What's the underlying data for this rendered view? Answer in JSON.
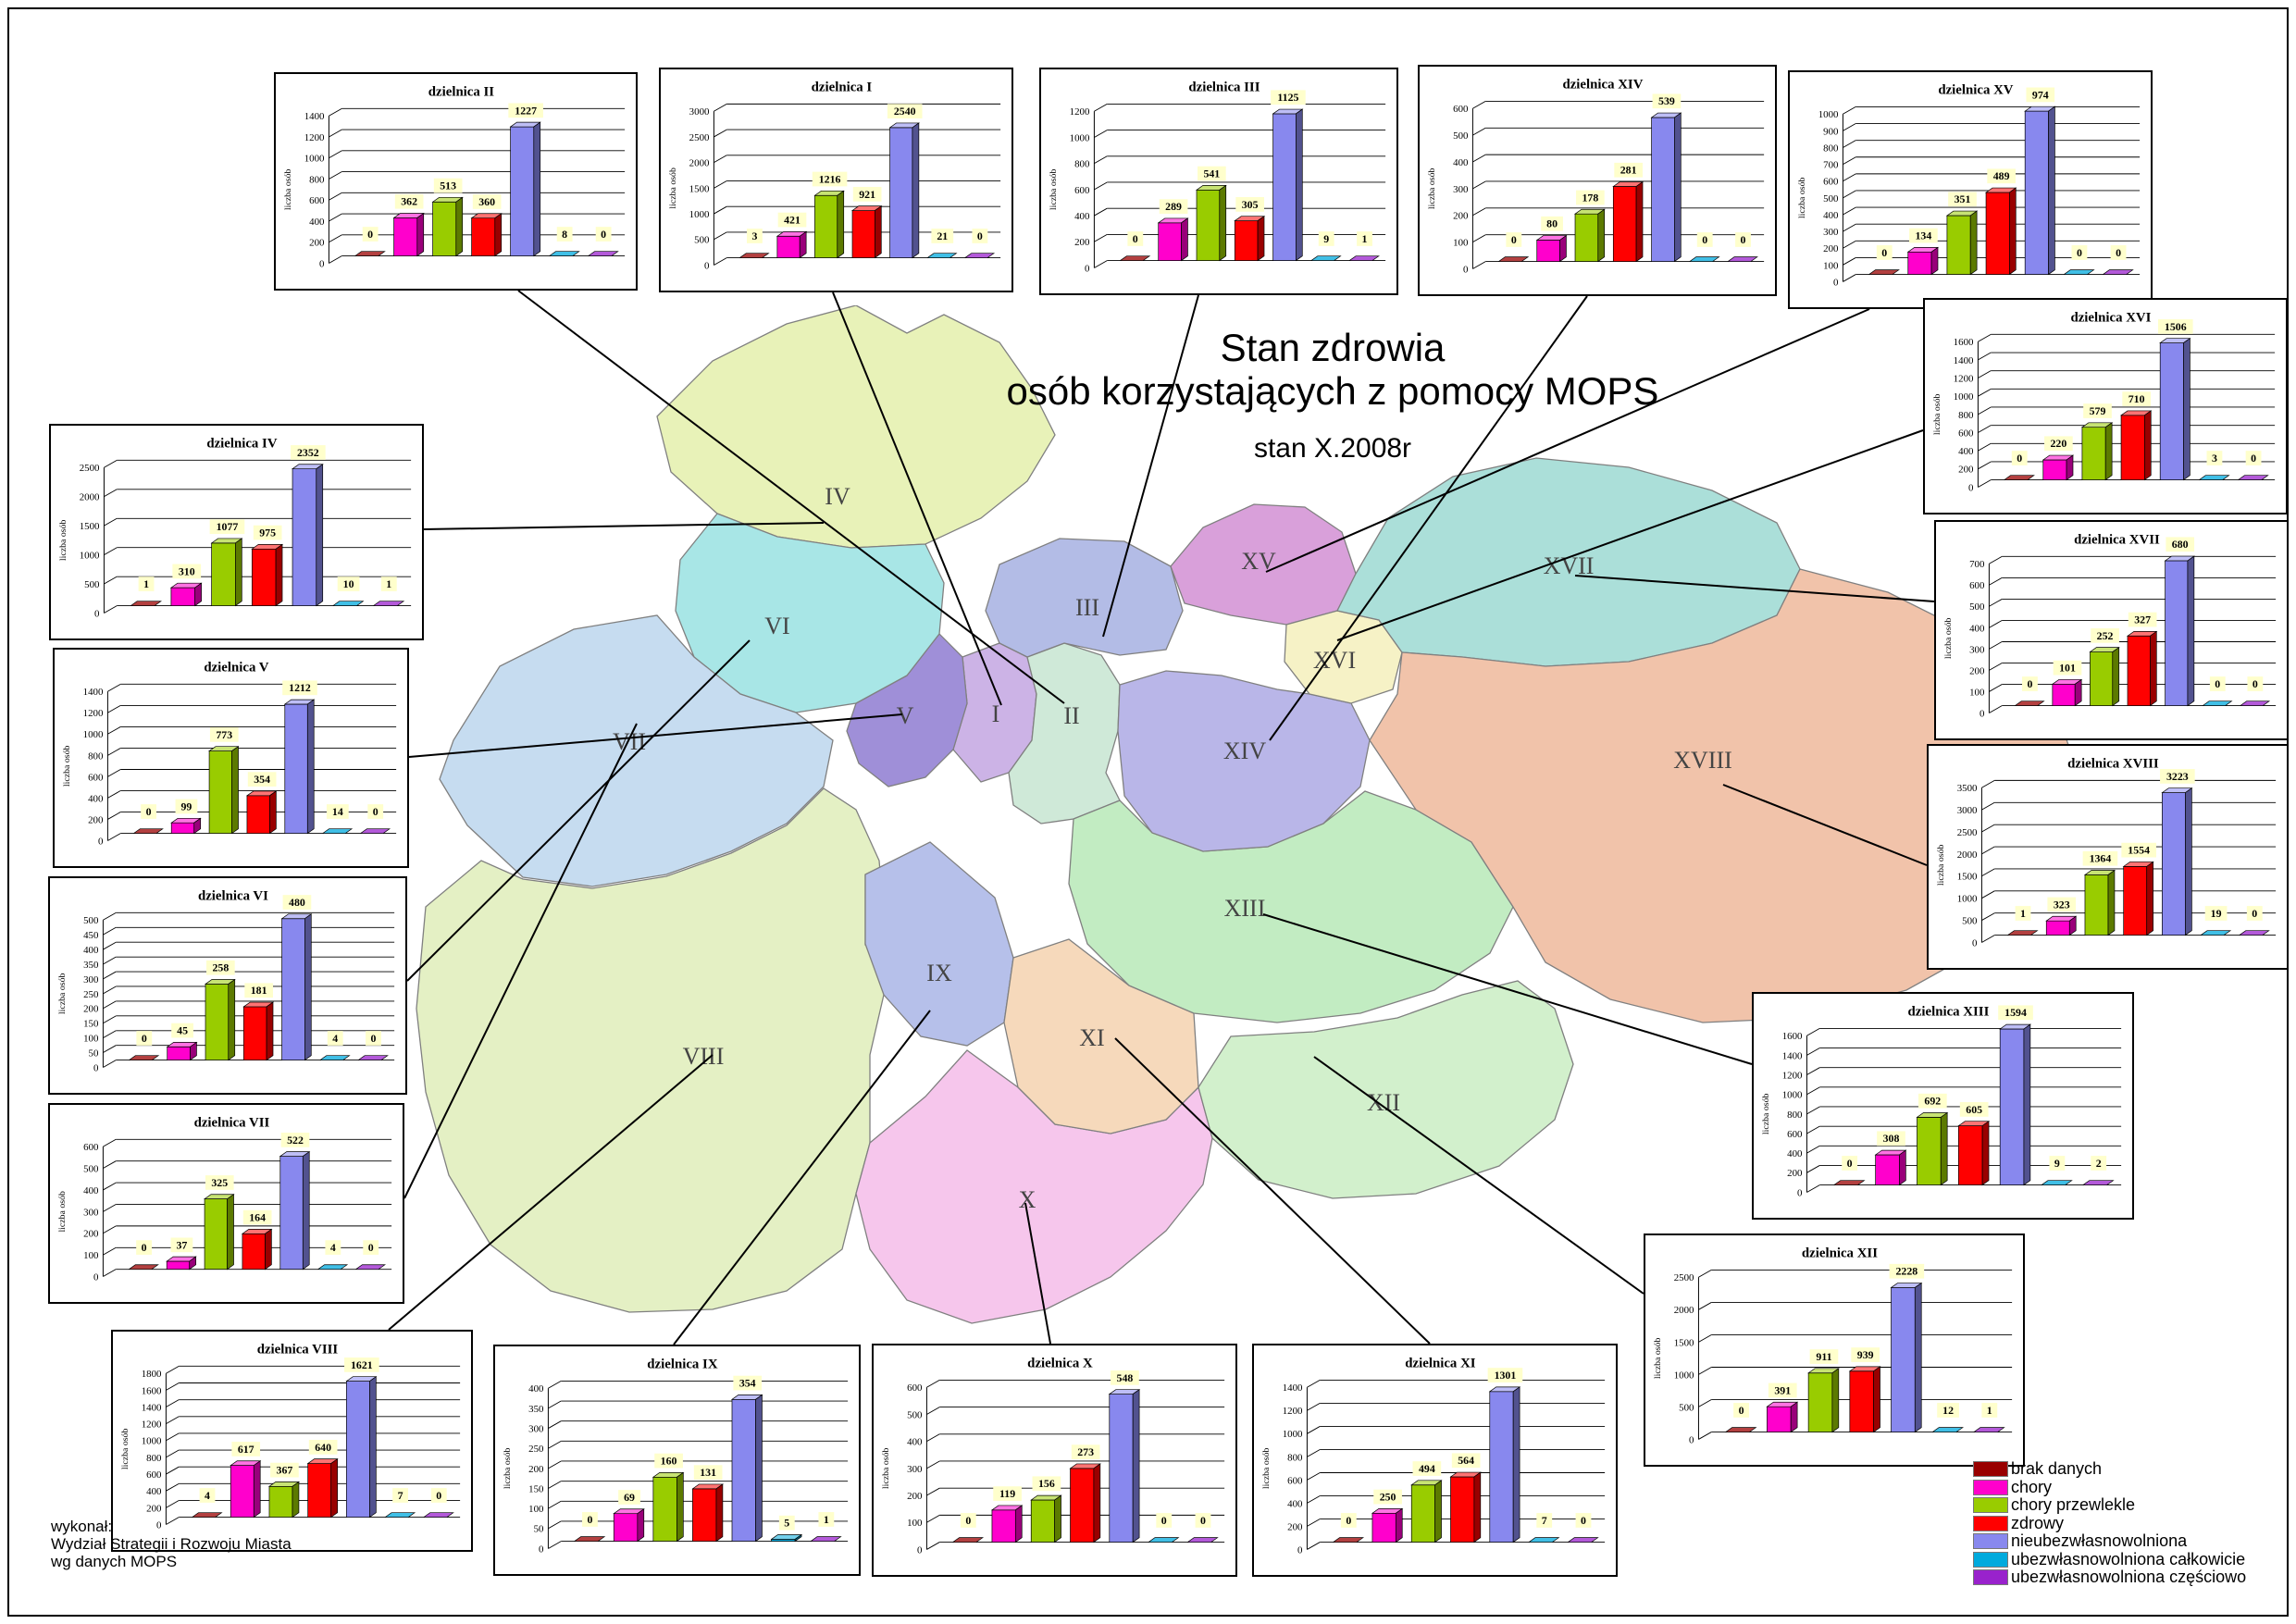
{
  "title": {
    "line1": "Stan zdrowia",
    "line2": "osób korzystających z pomocy MOPS",
    "subtitle": "stan X.2008r"
  },
  "footer": {
    "lines": [
      "wykonał:",
      "Wydział Strategii i Rozwoju Miasta",
      "wg danych MOPS"
    ]
  },
  "legend": {
    "items": [
      {
        "label": "brak danych",
        "color": "#990000"
      },
      {
        "label": "chory",
        "color": "#ff00cc"
      },
      {
        "label": "chory przewlekle",
        "color": "#99cc00"
      },
      {
        "label": "zdrowy",
        "color": "#ff0000"
      },
      {
        "label": "nieubezwłasnowolniona",
        "color": "#8888ee"
      },
      {
        "label": "ubezwłasnowolniona całkowicie",
        "color": "#00aadd"
      },
      {
        "label": "ubezwłasnowolniona częściowo",
        "color": "#9922cc"
      }
    ]
  },
  "chart_data": {
    "type": "bar",
    "ylabel": "liczba osób",
    "categories": [
      "brak danych",
      "chory",
      "chory przewlekle",
      "zdrowy",
      "nieubezwłasnowolniona",
      "ubezwłasnowolniona całkowicie",
      "ubezwłasnowolniona częściowo"
    ],
    "series_colors": [
      "#990000",
      "#ff00cc",
      "#99cc00",
      "#ff0000",
      "#8888ee",
      "#00aadd",
      "#9922cc"
    ],
    "charts": [
      {
        "id": "II",
        "title": "dzielnica II",
        "values": [
          0,
          362,
          513,
          360,
          1227,
          8,
          0
        ],
        "ylim": [
          0,
          1400
        ],
        "ystep": 200
      },
      {
        "id": "I",
        "title": "dzielnica I",
        "values": [
          3,
          421,
          1216,
          921,
          2540,
          21,
          0
        ],
        "ylim": [
          0,
          3000
        ],
        "ystep": 500
      },
      {
        "id": "III",
        "title": "dzielnica III",
        "values": [
          0,
          289,
          541,
          305,
          1125,
          9,
          1
        ],
        "ylim": [
          0,
          1200
        ],
        "ystep": 200
      },
      {
        "id": "XIV",
        "title": "dzielnica XIV",
        "values": [
          0,
          80,
          178,
          281,
          539,
          0,
          0
        ],
        "ylim": [
          0,
          600
        ],
        "ystep": 100
      },
      {
        "id": "XV",
        "title": "dzielnica XV",
        "values": [
          0,
          134,
          351,
          489,
          974,
          0,
          0
        ],
        "ylim": [
          0,
          1000
        ],
        "ystep": 100
      },
      {
        "id": "XVI",
        "title": "dzielnica XVI",
        "values": [
          0,
          220,
          579,
          710,
          1506,
          3,
          0
        ],
        "ylim": [
          0,
          1600
        ],
        "ystep": 200
      },
      {
        "id": "XVII",
        "title": "dzielnica XVII",
        "values": [
          0,
          101,
          252,
          327,
          680,
          0,
          0
        ],
        "ylim": [
          0,
          700
        ],
        "ystep": 100
      },
      {
        "id": "XVIII",
        "title": "dzielnica XVIII",
        "values": [
          1,
          323,
          1364,
          1554,
          3223,
          19,
          0
        ],
        "ylim": [
          0,
          3500
        ],
        "ystep": 500
      },
      {
        "id": "XIII",
        "title": "dzielnica XIII",
        "values": [
          0,
          308,
          692,
          605,
          1594,
          9,
          2
        ],
        "ylim": [
          0,
          1600
        ],
        "ystep": 200
      },
      {
        "id": "XII",
        "title": "dzielnica XII",
        "values": [
          0,
          391,
          911,
          939,
          2228,
          12,
          1
        ],
        "ylim": [
          0,
          2500
        ],
        "ystep": 500
      },
      {
        "id": "XI",
        "title": "dzielnica XI",
        "values": [
          0,
          250,
          494,
          564,
          1301,
          7,
          0
        ],
        "ylim": [
          0,
          1400
        ],
        "ystep": 200
      },
      {
        "id": "X",
        "title": "dzielnica X",
        "values": [
          0,
          119,
          156,
          273,
          548,
          0,
          0
        ],
        "ylim": [
          0,
          600
        ],
        "ystep": 100
      },
      {
        "id": "IX",
        "title": "dzielnica IX",
        "values": [
          0,
          69,
          160,
          131,
          354,
          5,
          1
        ],
        "ylim": [
          0,
          400
        ],
        "ystep": 50
      },
      {
        "id": "VIII",
        "title": "dzielnica VIII",
        "values": [
          4,
          617,
          367,
          640,
          1621,
          7,
          0
        ],
        "ylim": [
          0,
          1800
        ],
        "ystep": 200
      },
      {
        "id": "VII",
        "title": "dzielnica VII",
        "values": [
          0,
          37,
          325,
          164,
          522,
          4,
          0
        ],
        "ylim": [
          0,
          600
        ],
        "ystep": 100
      },
      {
        "id": "VI",
        "title": "dzielnica VI",
        "values": [
          0,
          45,
          258,
          181,
          480,
          4,
          0
        ],
        "ylim": [
          0,
          500
        ],
        "ystep": 50
      },
      {
        "id": "V",
        "title": "dzielnica V",
        "values": [
          0,
          99,
          773,
          354,
          1212,
          14,
          0
        ],
        "ylim": [
          0,
          1400
        ],
        "ystep": 200
      },
      {
        "id": "IV",
        "title": "dzielnica IV",
        "values": [
          1,
          310,
          1077,
          975,
          2352,
          10,
          1
        ],
        "ylim": [
          0,
          2500
        ],
        "ystep": 500
      }
    ]
  },
  "map": {
    "districts": [
      {
        "id": "I",
        "label": "I",
        "color": "#ccb3e6"
      },
      {
        "id": "II",
        "label": "II",
        "color": "#cfe9d8"
      },
      {
        "id": "III",
        "label": "III",
        "color": "#b3bce6"
      },
      {
        "id": "IV",
        "label": "IV",
        "color": "#e8f2b8"
      },
      {
        "id": "V",
        "label": "V",
        "color": "#9f8fd8"
      },
      {
        "id": "VI",
        "label": "VI",
        "color": "#a8e6e6"
      },
      {
        "id": "VII",
        "label": "VII",
        "color": "#c6dcf0"
      },
      {
        "id": "VIII",
        "label": "VIII",
        "color": "#e4f0c4"
      },
      {
        "id": "IX",
        "label": "IX",
        "color": "#b6c0ea"
      },
      {
        "id": "X",
        "label": "X",
        "color": "#f6c6ec"
      },
      {
        "id": "XI",
        "label": "XI",
        "color": "#f6d9bb"
      },
      {
        "id": "XII",
        "label": "XII",
        "color": "#d2f0cc"
      },
      {
        "id": "XIII",
        "label": "XIII",
        "color": "#c2ecc2"
      },
      {
        "id": "XIV",
        "label": "XIV",
        "color": "#b9b6e8"
      },
      {
        "id": "XV",
        "label": "XV",
        "color": "#d9a0da"
      },
      {
        "id": "XVI",
        "label": "XVI",
        "color": "#f6f2c6"
      },
      {
        "id": "XVII",
        "label": "XVII",
        "color": "#abdfd9"
      },
      {
        "id": "XVIII",
        "label": "XVIII",
        "color": "#f1c3aa"
      }
    ]
  }
}
